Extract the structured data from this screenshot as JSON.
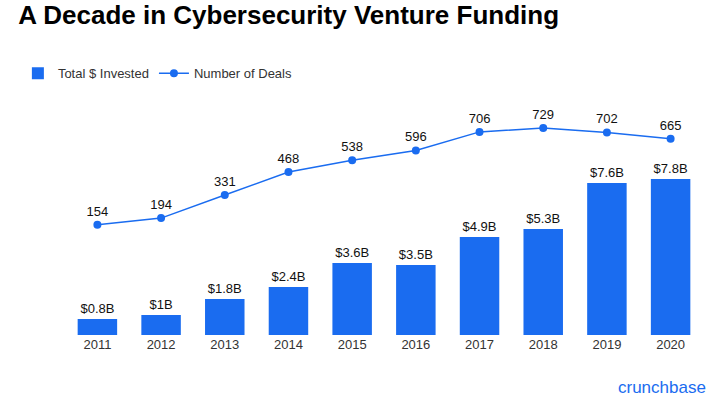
{
  "chart_data": {
    "type": "bar",
    "title": "A Decade in Cybersecurity Venture Funding",
    "categories": [
      "2011",
      "2012",
      "2013",
      "2014",
      "2015",
      "2016",
      "2017",
      "2018",
      "2019",
      "2020"
    ],
    "series": [
      {
        "name": "Total $ Invested",
        "type": "bar",
        "color": "#1a6cf0",
        "values": [
          0.8,
          1,
          1.8,
          2.4,
          3.6,
          3.5,
          4.9,
          5.3,
          7.6,
          7.8
        ],
        "value_labels": [
          "$0.8B",
          "$1B",
          "$1.8B",
          "$2.4B",
          "$3.6B",
          "$3.5B",
          "$4.9B",
          "$5.3B",
          "$7.6B",
          "$7.8B"
        ]
      },
      {
        "name": "Number of Deals",
        "type": "line",
        "axis": "y2",
        "color": "#1a6cf0",
        "marker": "circle",
        "line_style": "solid",
        "values": [
          154,
          194,
          331,
          468,
          538,
          596,
          706,
          729,
          702,
          665
        ]
      }
    ],
    "ylim": [
      0,
      12
    ],
    "y2lim": [
      -500,
      925
    ],
    "data_labels": true,
    "tick_labels": "x",
    "grid": false,
    "legend": "top-left",
    "annotations": [
      "crunchbase"
    ]
  }
}
